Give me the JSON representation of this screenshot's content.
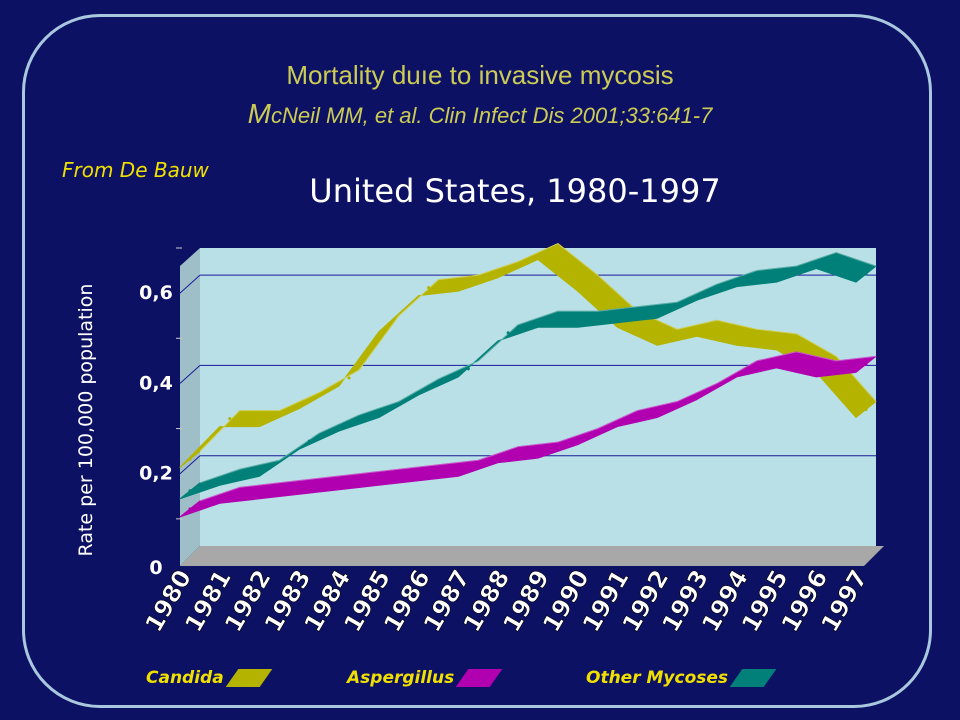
{
  "header": {
    "title": "Mortality duıe to invasive mycosis",
    "citation_initial": "M",
    "citation_rest": "cNeil MM, et al. Clin Infect Dis 2001;33:641-7",
    "source_note": "From De Bauw"
  },
  "colors": {
    "background": "#0d1163",
    "frame": "#a9c8e0",
    "plot_bg": "#b8e0e6",
    "candida": "#b4b400",
    "aspergillus": "#b000b0",
    "other": "#008078"
  },
  "chart_data": {
    "type": "line",
    "title": "United States, 1980-1997",
    "ylabel": "Rate per 100,000 population",
    "xlabel": "",
    "ylim": [
      0,
      0.7
    ],
    "yticks": [
      0,
      0.2,
      0.4,
      0.6
    ],
    "ytick_labels": [
      "0",
      "0,2",
      "0,4",
      "0,6"
    ],
    "grid": true,
    "legend_position": "bottom",
    "categories": [
      "1980",
      "1981",
      "1982",
      "1983",
      "1984",
      "1985",
      "1986",
      "1987",
      "1988",
      "1989",
      "1990",
      "1991",
      "1992",
      "1993",
      "1994",
      "1995",
      "1996",
      "1997"
    ],
    "series": [
      {
        "name": "Candida",
        "color": "#b4b400",
        "values": [
          0.21,
          0.3,
          0.3,
          0.34,
          0.39,
          0.51,
          0.59,
          0.6,
          0.63,
          0.67,
          0.6,
          0.52,
          0.48,
          0.5,
          0.48,
          0.47,
          0.42,
          0.32
        ]
      },
      {
        "name": "Aspergillus",
        "color": "#b000b0",
        "values": [
          0.1,
          0.13,
          0.14,
          0.15,
          0.16,
          0.17,
          0.18,
          0.19,
          0.22,
          0.23,
          0.26,
          0.3,
          0.32,
          0.36,
          0.41,
          0.43,
          0.41,
          0.42
        ]
      },
      {
        "name": "Other Mycoses",
        "color": "#008078",
        "values": [
          0.14,
          0.17,
          0.19,
          0.25,
          0.29,
          0.32,
          0.37,
          0.41,
          0.49,
          0.52,
          0.52,
          0.53,
          0.54,
          0.58,
          0.61,
          0.62,
          0.65,
          0.62
        ]
      }
    ]
  }
}
